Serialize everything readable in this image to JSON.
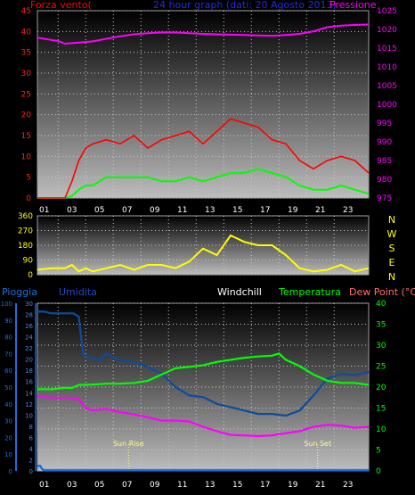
{
  "chart_data": [
    {
      "type": "line",
      "title": "24 hour graph (dati: 20 Agosto 2013)",
      "left_axis_label": "Forza vento(",
      "right_axis_label": "Pressione",
      "ylim_left": [
        0,
        45
      ],
      "ylim_right": [
        975,
        1025
      ],
      "left_ticks": [
        "0",
        "5",
        "10",
        "15",
        "20",
        "25",
        "30",
        "35",
        "40",
        "45"
      ],
      "right_ticks": [
        "975",
        "980",
        "985",
        "990",
        "995",
        "1000",
        "1005",
        "1010",
        "1015",
        "1020",
        "1025"
      ],
      "x_ticks": [
        "01",
        "03",
        "05",
        "07",
        "09",
        "11",
        "13",
        "15",
        "17",
        "19",
        "21",
        "23"
      ],
      "colors": {
        "wind_gust": "#ff0000",
        "wind_avg": "#00ff00",
        "pressure": "#ff00ff"
      },
      "series": [
        {
          "key": "pressure",
          "axis": "right",
          "x": [
            0,
            0.5,
            1,
            1.5,
            2,
            3,
            4,
            5,
            6,
            7,
            8,
            9,
            10,
            11,
            12,
            13,
            14,
            15,
            16,
            17,
            18,
            19,
            20,
            21,
            22,
            23,
            24
          ],
          "values": [
            1017.8,
            1017.5,
            1017.2,
            1016.9,
            1016.2,
            1016.5,
            1016.8,
            1017.5,
            1018.2,
            1018.7,
            1019.0,
            1019.2,
            1019.2,
            1019.0,
            1018.8,
            1018.7,
            1018.6,
            1018.5,
            1018.4,
            1018.3,
            1018.5,
            1018.8,
            1019.5,
            1020.6,
            1021.0,
            1021.2,
            1021.3
          ]
        },
        {
          "key": "wind_avg",
          "axis": "left",
          "x": [
            0,
            1,
            2,
            2.5,
            3,
            3.5,
            4,
            5,
            6,
            7,
            8,
            9,
            10,
            11,
            12,
            13,
            14,
            15,
            16,
            17,
            18,
            19,
            20,
            21,
            22,
            23,
            24
          ],
          "values": [
            0,
            0,
            0,
            0.5,
            2,
            3,
            3,
            5,
            5,
            5,
            5,
            4,
            4,
            5,
            4,
            5,
            6,
            6,
            7,
            6,
            5,
            3,
            2,
            2,
            3,
            2,
            1
          ]
        },
        {
          "key": "wind_gust",
          "axis": "left",
          "x": [
            0,
            1,
            2,
            2.5,
            3,
            3.5,
            4,
            5,
            6,
            7,
            8,
            9,
            10,
            11,
            12,
            13,
            14,
            15,
            16,
            17,
            18,
            19,
            20,
            21,
            22,
            23,
            24
          ],
          "values": [
            0,
            0,
            0,
            4,
            9,
            12,
            13,
            14,
            13,
            15,
            12,
            14,
            15,
            16,
            13,
            16,
            19,
            18,
            17,
            14,
            13,
            9,
            7,
            9,
            10,
            9,
            6
          ]
        }
      ]
    },
    {
      "type": "line",
      "title": "",
      "ylim": [
        0,
        360
      ],
      "left_ticks": [
        "0",
        "90",
        "180",
        "270",
        "360"
      ],
      "right_labels": [
        "N",
        "W",
        "S",
        "E",
        "N"
      ],
      "x_ticks": [
        "01",
        "03",
        "05",
        "07",
        "09",
        "11",
        "13",
        "15",
        "17",
        "19",
        "21",
        "23"
      ],
      "colors": {
        "wind_direction": "#ffff00"
      },
      "series": [
        {
          "key": "wind_direction",
          "x": [
            0,
            1,
            2,
            2.5,
            3,
            3.5,
            4,
            5,
            6,
            7,
            8,
            9,
            10,
            11,
            12,
            13,
            14,
            15,
            16,
            17,
            18,
            19,
            20,
            21,
            22,
            23,
            24
          ],
          "values": [
            30,
            40,
            40,
            60,
            20,
            40,
            20,
            40,
            60,
            30,
            60,
            60,
            40,
            80,
            160,
            120,
            240,
            200,
            180,
            180,
            120,
            40,
            20,
            30,
            60,
            20,
            40
          ]
        }
      ]
    },
    {
      "type": "line",
      "title": "",
      "labels": {
        "rain": "Pioggia",
        "humidity": "Umidita",
        "windchill": "Windchill",
        "temperature": "Temperatura",
        "dewpoint": "Dew Point (°C)"
      },
      "ylim_rain": [
        0,
        100
      ],
      "ylim_humidity": [
        0,
        30
      ],
      "ylim_temp": [
        0,
        40
      ],
      "rain_ticks": [
        "0",
        "10",
        "20",
        "30",
        "40",
        "50",
        "60",
        "70",
        "80",
        "90",
        "100"
      ],
      "humidity_ticks": [
        "0",
        "2",
        "4",
        "6",
        "8",
        "10",
        "12",
        "14",
        "16",
        "18",
        "20",
        "22",
        "24",
        "26",
        "28",
        "30"
      ],
      "temp_ticks": [
        "0",
        "5",
        "10",
        "15",
        "20",
        "25",
        "30",
        "35",
        "40"
      ],
      "x_ticks": [
        "01",
        "03",
        "05",
        "07",
        "09",
        "11",
        "13",
        "15",
        "17",
        "19",
        "21",
        "23"
      ],
      "annotations": [
        {
          "text": "Sun Rise",
          "x": 6.6
        },
        {
          "text": "Sun Set",
          "x": 20.3
        }
      ],
      "colors": {
        "rain": "#1e6fdc",
        "humidity": "#0d4c9c",
        "temperature": "#00ff00",
        "dewpoint": "#ff00ff",
        "windchill": "#ffffff"
      },
      "series": [
        {
          "key": "humidity",
          "axis": "rain",
          "x": [
            0,
            0.5,
            1,
            1.5,
            2,
            2.6,
            3,
            3.3,
            3.6,
            4,
            4.5,
            5,
            5.5,
            6,
            7,
            8,
            9,
            10,
            11,
            12,
            13,
            14,
            15,
            16,
            17,
            18,
            19,
            20,
            21,
            22,
            23,
            24
          ],
          "values": [
            95,
            95,
            94,
            94,
            94,
            94,
            92,
            70,
            68,
            67,
            66,
            70,
            68,
            66,
            65,
            62,
            58,
            50,
            45,
            44,
            40,
            38,
            36,
            34,
            34,
            33,
            36,
            45,
            55,
            58,
            57,
            59
          ]
        },
        {
          "key": "temperature",
          "axis": "temp",
          "x": [
            0,
            1,
            2,
            2.5,
            3,
            4,
            5,
            6,
            7,
            8,
            9,
            10,
            11,
            12,
            13,
            14,
            15,
            16,
            17,
            17.5,
            18,
            19,
            20,
            21,
            22,
            23,
            24
          ],
          "values": [
            19.5,
            19.5,
            19.8,
            19.8,
            20.5,
            20.6,
            20.8,
            20.8,
            21.0,
            21.5,
            23.0,
            24.5,
            24.8,
            25.2,
            26.0,
            26.5,
            27.0,
            27.3,
            27.5,
            28.0,
            26.5,
            25.0,
            23.0,
            21.5,
            21.0,
            21.0,
            20.5
          ]
        },
        {
          "key": "dewpoint",
          "axis": "temp",
          "x": [
            0,
            1,
            2,
            3,
            3.5,
            4,
            5,
            6,
            7,
            8,
            9,
            10,
            11,
            12,
            13,
            14,
            15,
            16,
            17,
            18,
            19,
            20,
            21,
            22,
            23,
            24
          ],
          "values": [
            17.8,
            17.5,
            17.5,
            17.2,
            15.0,
            14.5,
            14.8,
            14.0,
            13.5,
            12.8,
            12.0,
            12.0,
            11.8,
            10.5,
            9.5,
            8.6,
            8.5,
            8.3,
            8.5,
            9.0,
            9.5,
            10.5,
            11.0,
            10.8,
            10.3,
            10.5
          ]
        },
        {
          "key": "rain",
          "axis": "rain",
          "x": [
            0,
            0.2,
            0.4,
            24
          ],
          "values": [
            3,
            3,
            0.5,
            0.5
          ]
        }
      ]
    }
  ]
}
